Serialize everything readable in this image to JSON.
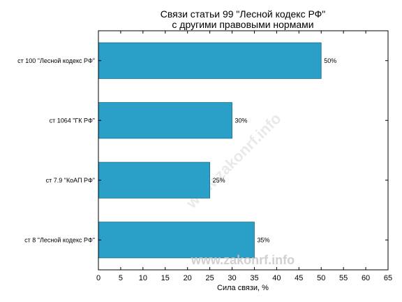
{
  "chart_data": {
    "type": "bar",
    "orientation": "horizontal",
    "title_line1": "Связи статьи 99 \"Лесной кодекс РФ\"",
    "title_line2": "с другими правовыми нормами",
    "xlabel": "Сила связи, %",
    "ylabel": "",
    "categories": [
      "ст 100 \"Лесной кодекс РФ\"",
      "ст 1064 \"ГК РФ\"",
      "ст 7.9 \"КоАП РФ\"",
      "ст 8 \"Лесной кодекс РФ\""
    ],
    "values": [
      50,
      30,
      25,
      35
    ],
    "data_labels": [
      "50%",
      "30%",
      "25%",
      "35%"
    ],
    "xlim": [
      0,
      65
    ],
    "xticks": [
      0,
      5,
      10,
      15,
      20,
      25,
      30,
      35,
      40,
      45,
      50,
      55,
      60,
      65
    ],
    "grid": false,
    "bar_color": "#2a9fc7",
    "bar_edge_color": "#1b6f8c"
  },
  "watermark": "www.zakonrf.info"
}
